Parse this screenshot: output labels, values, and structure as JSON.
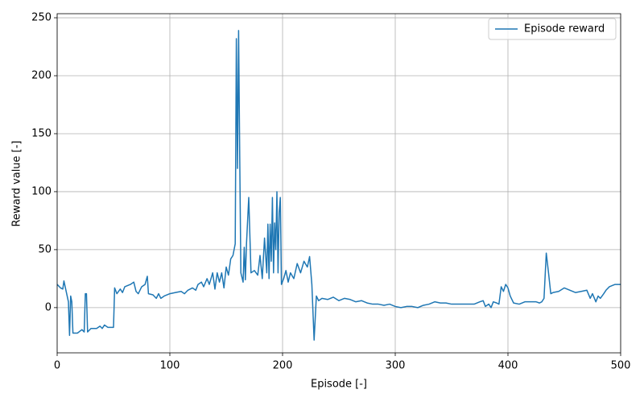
{
  "chart_data": {
    "type": "line",
    "x_label": "Episode [-]",
    "y_label": "Reward value [-]",
    "xlim": [
      0,
      500
    ],
    "ylim": [
      -39,
      253.5
    ],
    "xticks": [
      0,
      100,
      200,
      300,
      400,
      500
    ],
    "yticks": [
      0,
      50,
      100,
      150,
      200,
      250
    ],
    "grid": true,
    "legend": "upper right",
    "series": [
      {
        "name": "Episode reward",
        "color": "#1f77b4",
        "x": [
          0,
          3,
          5,
          6,
          8,
          10,
          11,
          12,
          13,
          14,
          18,
          22,
          24,
          25,
          26,
          27,
          30,
          35,
          38,
          40,
          42,
          45,
          50,
          51,
          53,
          56,
          58,
          60,
          65,
          68,
          70,
          72,
          75,
          78,
          80,
          81,
          85,
          88,
          90,
          92,
          95,
          100,
          105,
          110,
          113,
          116,
          120,
          123,
          125,
          128,
          130,
          133,
          135,
          138,
          140,
          142,
          144,
          146,
          148,
          150,
          152,
          154,
          156,
          157,
          158,
          159,
          160,
          161,
          162,
          163,
          165,
          166,
          167,
          168,
          170,
          172,
          175,
          178,
          180,
          182,
          184,
          186,
          187,
          188,
          189,
          190,
          191,
          192,
          193,
          194,
          195,
          196,
          197,
          198,
          199,
          201,
          203,
          205,
          207,
          210,
          213,
          216,
          219,
          222,
          224,
          226,
          228,
          230,
          232,
          235,
          240,
          245,
          250,
          255,
          260,
          265,
          270,
          275,
          280,
          285,
          290,
          295,
          300,
          305,
          310,
          315,
          320,
          325,
          330,
          335,
          340,
          345,
          350,
          355,
          360,
          365,
          370,
          375,
          378,
          380,
          383,
          385,
          387,
          390,
          392,
          394,
          396,
          398,
          400,
          402,
          405,
          410,
          415,
          420,
          425,
          428,
          430,
          432,
          434,
          436,
          438,
          440,
          445,
          450,
          455,
          460,
          465,
          470,
          473,
          475,
          478,
          480,
          482,
          485,
          487,
          490,
          495,
          500
        ],
        "values": [
          20,
          17,
          16,
          23,
          14,
          5,
          -24,
          10,
          5,
          -22,
          -22,
          -19,
          -21,
          12,
          12,
          -21,
          -18,
          -18,
          -16,
          -18,
          -15,
          -17,
          -17,
          17,
          12,
          16,
          13,
          18,
          20,
          22,
          14,
          12,
          18,
          20,
          27,
          12,
          11,
          8,
          12,
          8,
          10,
          12,
          13,
          14,
          12,
          15,
          17,
          15,
          20,
          22,
          18,
          25,
          20,
          30,
          16,
          30,
          22,
          30,
          17,
          35,
          28,
          42,
          45,
          50,
          55,
          232,
          120,
          239,
          130,
          30,
          22,
          52,
          24,
          55,
          95,
          30,
          32,
          28,
          45,
          25,
          60,
          30,
          72,
          25,
          72,
          40,
          95,
          30,
          73,
          50,
          100,
          30,
          82,
          95,
          20,
          25,
          32,
          22,
          30,
          25,
          38,
          30,
          40,
          35,
          44,
          20,
          -28,
          10,
          6,
          8,
          7,
          9,
          6,
          8,
          7,
          5,
          6,
          4,
          3,
          3,
          2,
          3,
          1,
          0,
          1,
          1,
          0,
          2,
          3,
          5,
          4,
          4,
          3,
          3,
          3,
          3,
          3,
          5,
          6,
          1,
          3,
          0,
          5,
          4,
          3,
          18,
          14,
          20,
          17,
          10,
          4,
          3,
          5,
          5,
          5,
          4,
          5,
          8,
          47,
          30,
          12,
          13,
          14,
          17,
          15,
          13,
          14,
          15,
          8,
          12,
          5,
          10,
          8,
          12,
          15,
          18,
          20,
          20
        ]
      }
    ]
  }
}
